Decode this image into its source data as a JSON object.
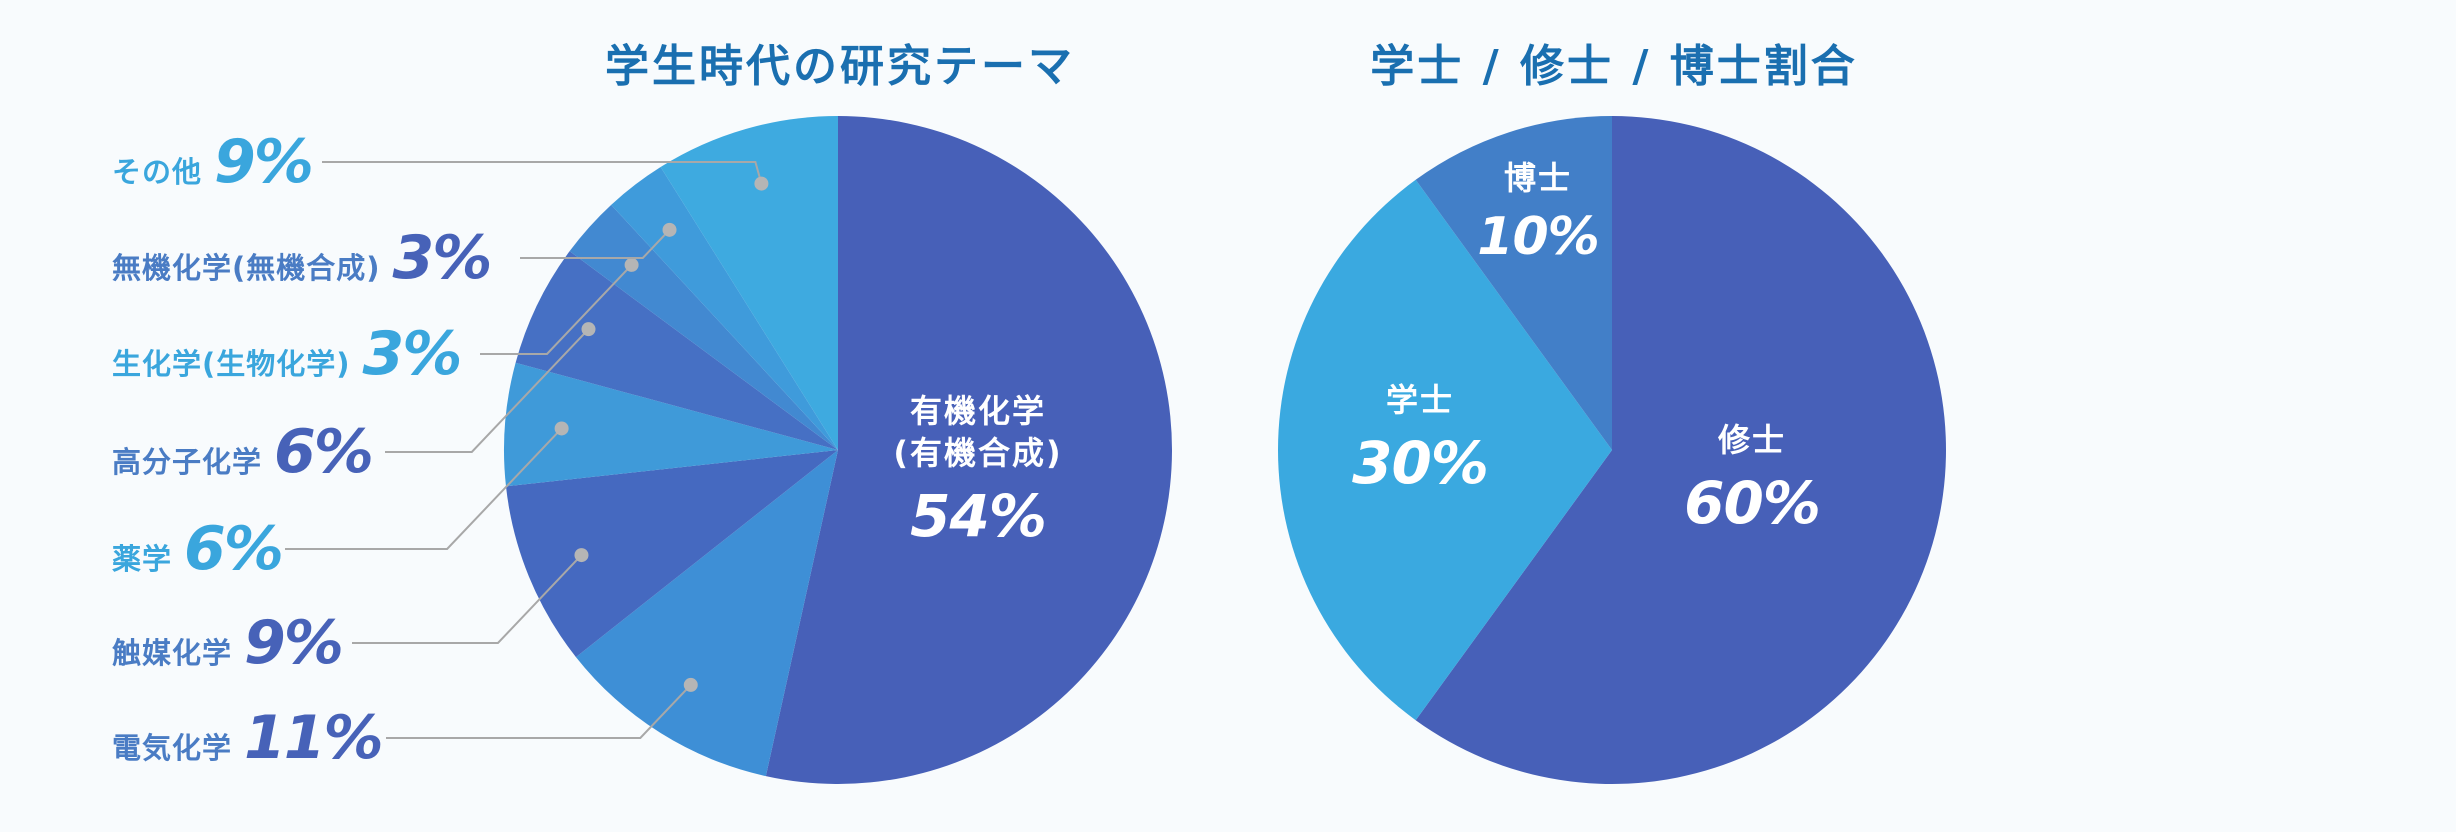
{
  "chart_data": [
    {
      "type": "pie",
      "title": "学生時代の研究テーマ",
      "slices": [
        {
          "label": "有機化学\n(有機合成)",
          "value": 54,
          "display": "54%",
          "color": "#4760b8"
        },
        {
          "label": "電気化学",
          "value": 11,
          "display": "11%",
          "color": "#3e8fd6"
        },
        {
          "label": "触媒化学",
          "value": 9,
          "display": "9%",
          "color": "#4569c0"
        },
        {
          "label": "薬学",
          "value": 6,
          "display": "6%",
          "color": "#3f9ad9"
        },
        {
          "label": "高分子化学",
          "value": 6,
          "display": "6%",
          "color": "#4670c4"
        },
        {
          "label": "生化学(生物化学)",
          "value": 3,
          "display": "3%",
          "color": "#4289d1"
        },
        {
          "label": "無機化学(無機合成)",
          "value": 3,
          "display": "3%",
          "color": "#3f9bdb"
        },
        {
          "label": "その他",
          "value": 9,
          "display": "9%",
          "color": "#3eaae0"
        }
      ]
    },
    {
      "type": "pie",
      "title": "学士 / 修士 / 博士割合",
      "slices": [
        {
          "label": "修士",
          "value": 60,
          "display": "60%",
          "color": "#4760b8"
        },
        {
          "label": "学士",
          "value": 30,
          "display": "30%",
          "color": "#3aa9e0"
        },
        {
          "label": "博士",
          "value": 10,
          "display": "10%",
          "color": "#427fc8"
        }
      ]
    }
  ]
}
